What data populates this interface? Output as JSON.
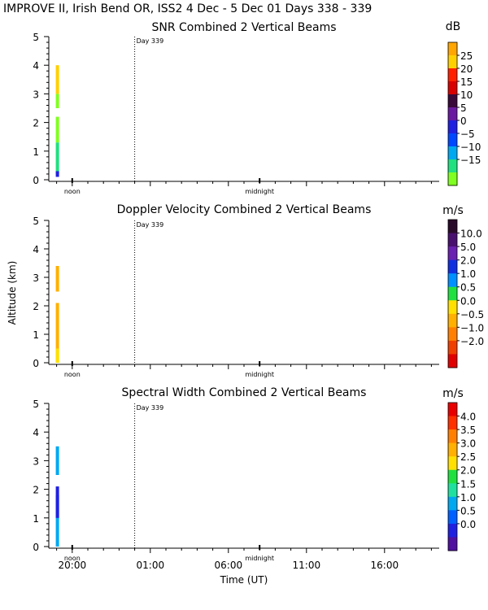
{
  "header": {
    "title": "IMPROVE II,  Irish Bend OR, ISS2   4 Dec -  5 Dec 01 Days 338 - 339"
  },
  "shared": {
    "ylabel": "Altitude (km)",
    "xlabel": "Time (UT)",
    "day_marker": "Day 339",
    "noon_label": "noon",
    "midnight_label": "midnight"
  },
  "chart_data": [
    {
      "type": "heatmap",
      "title": "SNR Combined 2 Vertical Beams",
      "unit": "dB",
      "ylim": [
        0,
        5
      ],
      "yticks": [
        "0",
        "1",
        "2",
        "3",
        "4",
        "5"
      ],
      "colorbar": {
        "labels": [
          "25",
          "20",
          "15",
          "10",
          "5",
          "0",
          "−5",
          "−10",
          "−15"
        ],
        "colors": [
          "#ffa600",
          "#ffd000",
          "#ff2000",
          "#d80000",
          "#3a0a3a",
          "#6a1aa0",
          "#2020e0",
          "#0048ff",
          "#00a8f0",
          "#20e080",
          "#80ff20"
        ]
      },
      "data": [
        {
          "time": "19:00",
          "alt_range": [
            2.5,
            3.0
          ],
          "value_color": "#80ff20"
        },
        {
          "time": "19:00",
          "alt_range": [
            3.0,
            4.0
          ],
          "value_color": "#ffd000"
        },
        {
          "time": "19:00",
          "alt_range": [
            1.3,
            2.2
          ],
          "value_color": "#80ff20"
        },
        {
          "time": "19:00",
          "alt_range": [
            0.2,
            1.3
          ],
          "value_color": "#20e080"
        },
        {
          "time": "19:00",
          "alt_range": [
            0.1,
            0.3
          ],
          "value_color": "#2020e0"
        }
      ]
    },
    {
      "type": "heatmap",
      "title": "Doppler Velocity Combined 2 Vertical Beams",
      "unit": "m/s",
      "ylim": [
        0,
        5
      ],
      "yticks": [
        "0",
        "1",
        "2",
        "3",
        "4",
        "5"
      ],
      "colorbar": {
        "labels": [
          "10.0",
          "5.0",
          "2.0",
          "1.0",
          "0.5",
          "0.0",
          "−0.5",
          "−1.0",
          "−2.0"
        ],
        "colors": [
          "#2a0a2a",
          "#4a1070",
          "#6a20b0",
          "#1030e0",
          "#0090ff",
          "#20e040",
          "#ffe000",
          "#ffb000",
          "#ff8000",
          "#f04000",
          "#e00000"
        ]
      },
      "data": [
        {
          "time": "19:00",
          "alt_range": [
            2.5,
            3.4
          ],
          "value_color": "#ffb000"
        },
        {
          "time": "19:00",
          "alt_range": [
            0.0,
            2.1
          ],
          "value_color": "#ffb000"
        },
        {
          "time": "19:00",
          "alt_range": [
            0.0,
            0.5
          ],
          "value_color": "#ffe000"
        }
      ]
    },
    {
      "type": "heatmap",
      "title": "Spectral Width Combined 2 Vertical Beams",
      "unit": "m/s",
      "ylim": [
        0,
        5
      ],
      "yticks": [
        "0",
        "1",
        "2",
        "3",
        "4",
        "5"
      ],
      "colorbar": {
        "labels": [
          "4.0",
          "3.5",
          "3.0",
          "2.5",
          "2.0",
          "1.5",
          "1.0",
          "0.5",
          "0.0"
        ],
        "colors": [
          "#e80000",
          "#ff3000",
          "#ff8000",
          "#ffb000",
          "#ffe000",
          "#20e040",
          "#20e0a0",
          "#00a8f0",
          "#0060ff",
          "#2020e0",
          "#5010a0"
        ]
      },
      "data": [
        {
          "time": "19:00",
          "alt_range": [
            2.5,
            3.5
          ],
          "value_color": "#00a8f0"
        },
        {
          "time": "19:00",
          "alt_range": [
            0.0,
            1.8
          ],
          "value_color": "#00a8f0"
        },
        {
          "time": "19:00",
          "alt_range": [
            1.0,
            2.1
          ],
          "value_color": "#2020e0"
        }
      ]
    }
  ],
  "xaxis": {
    "ticks": [
      "20:00",
      "01:00",
      "06:00",
      "11:00",
      "16:00"
    ]
  }
}
